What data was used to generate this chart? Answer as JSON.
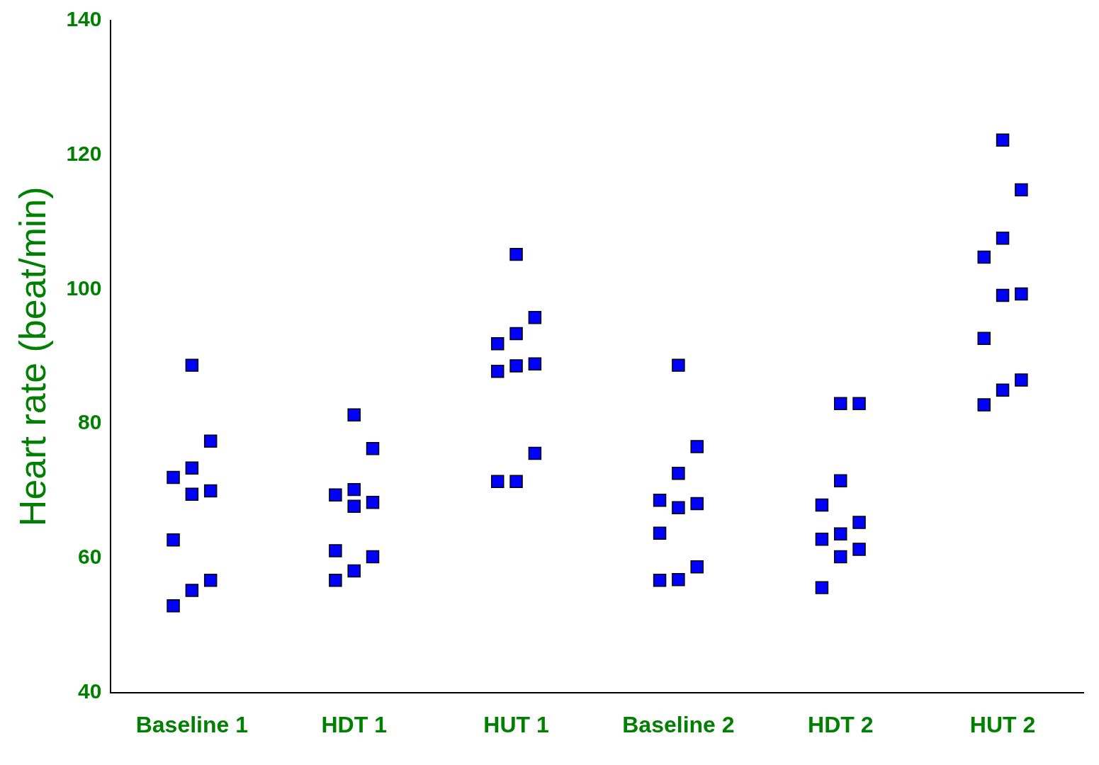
{
  "chart_data": {
    "type": "scatter",
    "ylabel": "Heart rate (beat/min)",
    "categories": [
      "Baseline 1",
      "HDT 1",
      "HUT 1",
      "Baseline 2",
      "HDT 2",
      "HUT 2"
    ],
    "ylim": [
      40,
      140
    ],
    "yticks": [
      40,
      60,
      80,
      100,
      120,
      140
    ],
    "grid": false,
    "legend": false,
    "marker": "square",
    "series": [
      {
        "color": "#0000ff",
        "x": [
          "Baseline 1",
          "Baseline 1",
          "Baseline 1",
          "Baseline 1",
          "Baseline 1",
          "Baseline 1",
          "Baseline 1",
          "Baseline 1",
          "Baseline 1",
          "Baseline 1",
          "HDT 1",
          "HDT 1",
          "HDT 1",
          "HDT 1",
          "HDT 1",
          "HDT 1",
          "HDT 1",
          "HDT 1",
          "HDT 1",
          "HDT 1",
          "HUT 1",
          "HUT 1",
          "HUT 1",
          "HUT 1",
          "HUT 1",
          "HUT 1",
          "HUT 1",
          "HUT 1",
          "HUT 1",
          "HUT 1",
          "Baseline 2",
          "Baseline 2",
          "Baseline 2",
          "Baseline 2",
          "Baseline 2",
          "Baseline 2",
          "Baseline 2",
          "Baseline 2",
          "Baseline 2",
          "Baseline 2",
          "HDT 2",
          "HDT 2",
          "HDT 2",
          "HDT 2",
          "HDT 2",
          "HDT 2",
          "HDT 2",
          "HDT 2",
          "HDT 2",
          "HDT 2",
          "HUT 2",
          "HUT 2",
          "HUT 2",
          "HUT 2",
          "HUT 2",
          "HUT 2",
          "HUT 2",
          "HUT 2",
          "HUT 2",
          "HUT 2"
        ],
        "values": [
          88.7,
          72.0,
          77.4,
          73.4,
          62.7,
          70.0,
          69.5,
          52.9,
          56.7,
          55.2,
          81.3,
          69.4,
          76.3,
          70.2,
          61.1,
          68.3,
          67.7,
          56.7,
          60.2,
          58.1,
          105.2,
          91.9,
          95.8,
          93.4,
          87.8,
          88.9,
          88.6,
          71.4,
          75.6,
          71.4,
          88.7,
          68.6,
          76.6,
          72.6,
          63.7,
          68.1,
          67.5,
          56.7,
          58.7,
          56.8,
          83.0,
          67.9,
          83.0,
          71.5,
          62.8,
          65.3,
          63.6,
          55.6,
          61.3,
          60.2,
          122.2,
          104.8,
          114.8,
          107.6,
          92.7,
          99.3,
          99.1,
          82.8,
          86.5,
          85.0
        ]
      }
    ]
  }
}
